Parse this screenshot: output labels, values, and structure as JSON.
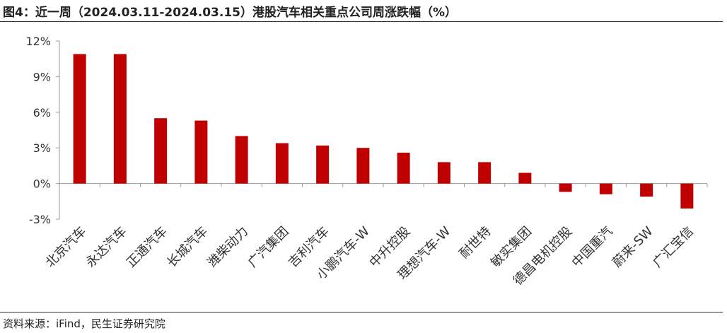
{
  "header": {
    "title": "图4：近一周（2024.03.11-2024.03.15）港股汽车相关重点公司周涨跌幅（%）"
  },
  "footer": {
    "source": "资料来源：iFind，民生证券研究院"
  },
  "chart_data": {
    "type": "bar",
    "title": "图4：近一周（2024.03.11-2024.03.15）港股汽车相关重点公司周涨跌幅（%）",
    "xlabel": "",
    "ylabel": "",
    "categories": [
      "北京汽车",
      "永达汽车",
      "正通汽车",
      "长城汽车",
      "潍柴动力",
      "广汽集团",
      "吉利汽车",
      "小鹏汽车-W",
      "中升控股",
      "理想汽车-W",
      "耐世特",
      "敏实集团",
      "德昌电机控股",
      "中国重汽",
      "蔚来-SW",
      "广汇宝信"
    ],
    "values": [
      10.9,
      10.9,
      5.5,
      5.3,
      4.0,
      3.4,
      3.2,
      3.0,
      2.6,
      1.8,
      1.8,
      0.9,
      -0.7,
      -0.9,
      -1.1,
      -2.1
    ],
    "unit": "%",
    "ylim": [
      -3,
      12
    ],
    "yticks": [
      -3,
      0,
      3,
      6,
      9,
      12
    ],
    "ytick_labels": [
      "-3%",
      "0%",
      "3%",
      "6%",
      "9%",
      "12%"
    ],
    "bar_color": "#C00000",
    "grid": false,
    "legend": "none"
  }
}
